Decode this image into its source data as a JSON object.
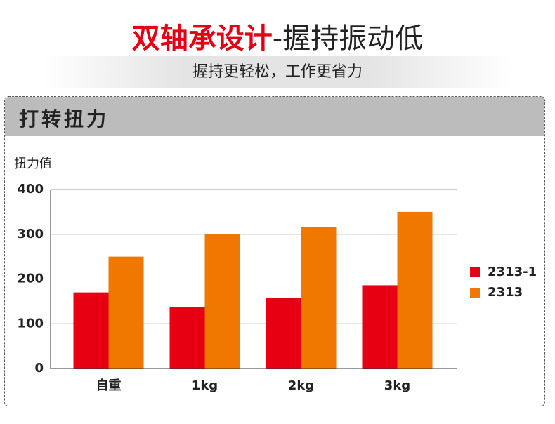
{
  "header": {
    "title_highlight": "双轴承设计",
    "title_rest": "-握持振动低",
    "subtitle": "握持更轻松，工作更省力"
  },
  "chart_data": {
    "type": "bar",
    "title": "打转扭力",
    "y_label": "扭力值",
    "categories": [
      "自重",
      "1kg",
      "2kg",
      "3kg"
    ],
    "series": [
      {
        "name": "2313-1",
        "color": "#e60012",
        "values": [
          170,
          137,
          157,
          186
        ]
      },
      {
        "name": "2313",
        "color": "#f07800",
        "values": [
          250,
          300,
          316,
          350
        ]
      }
    ],
    "ylim": [
      0,
      400
    ],
    "yticks": [
      0,
      100,
      200,
      300,
      400
    ],
    "grid": true
  }
}
